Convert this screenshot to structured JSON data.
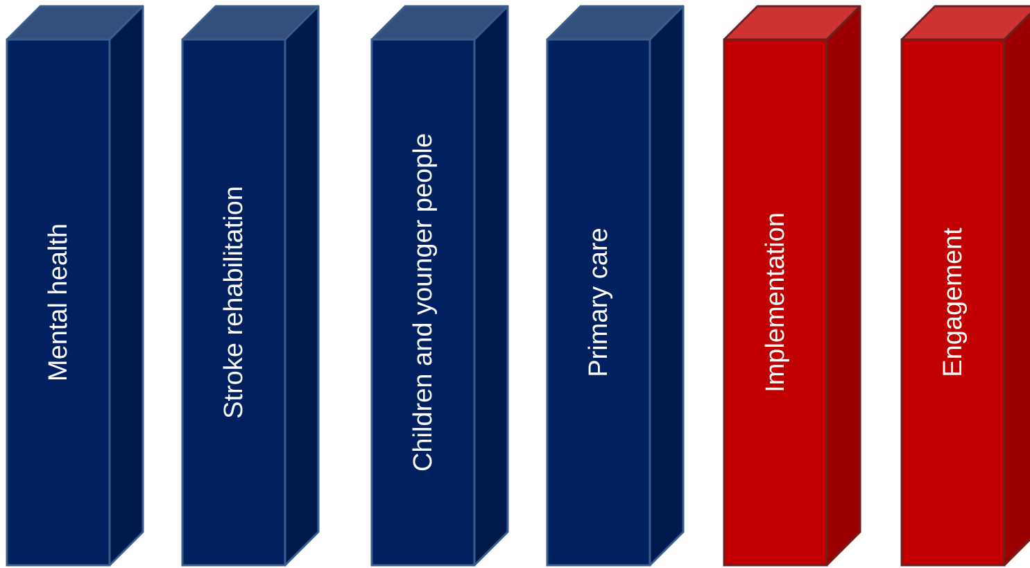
{
  "pillars": [
    {
      "label": "Mental health",
      "theme": "navy"
    },
    {
      "label": "Stroke rehabilitation",
      "theme": "navy"
    },
    {
      "label": "Children and younger people",
      "theme": "navy"
    },
    {
      "label": "Primary care",
      "theme": "navy"
    },
    {
      "label": "Implementation",
      "theme": "red"
    },
    {
      "label": "Engagement",
      "theme": "red"
    }
  ],
  "themes": {
    "navy": {
      "front": "#002060",
      "side": "#001a4e",
      "top": "#344e7e",
      "stroke": "#3a5e8c"
    },
    "red": {
      "front": "#c00000",
      "side": "#9a0000",
      "top": "#cd3333",
      "stroke": "#6b1f1f"
    }
  }
}
